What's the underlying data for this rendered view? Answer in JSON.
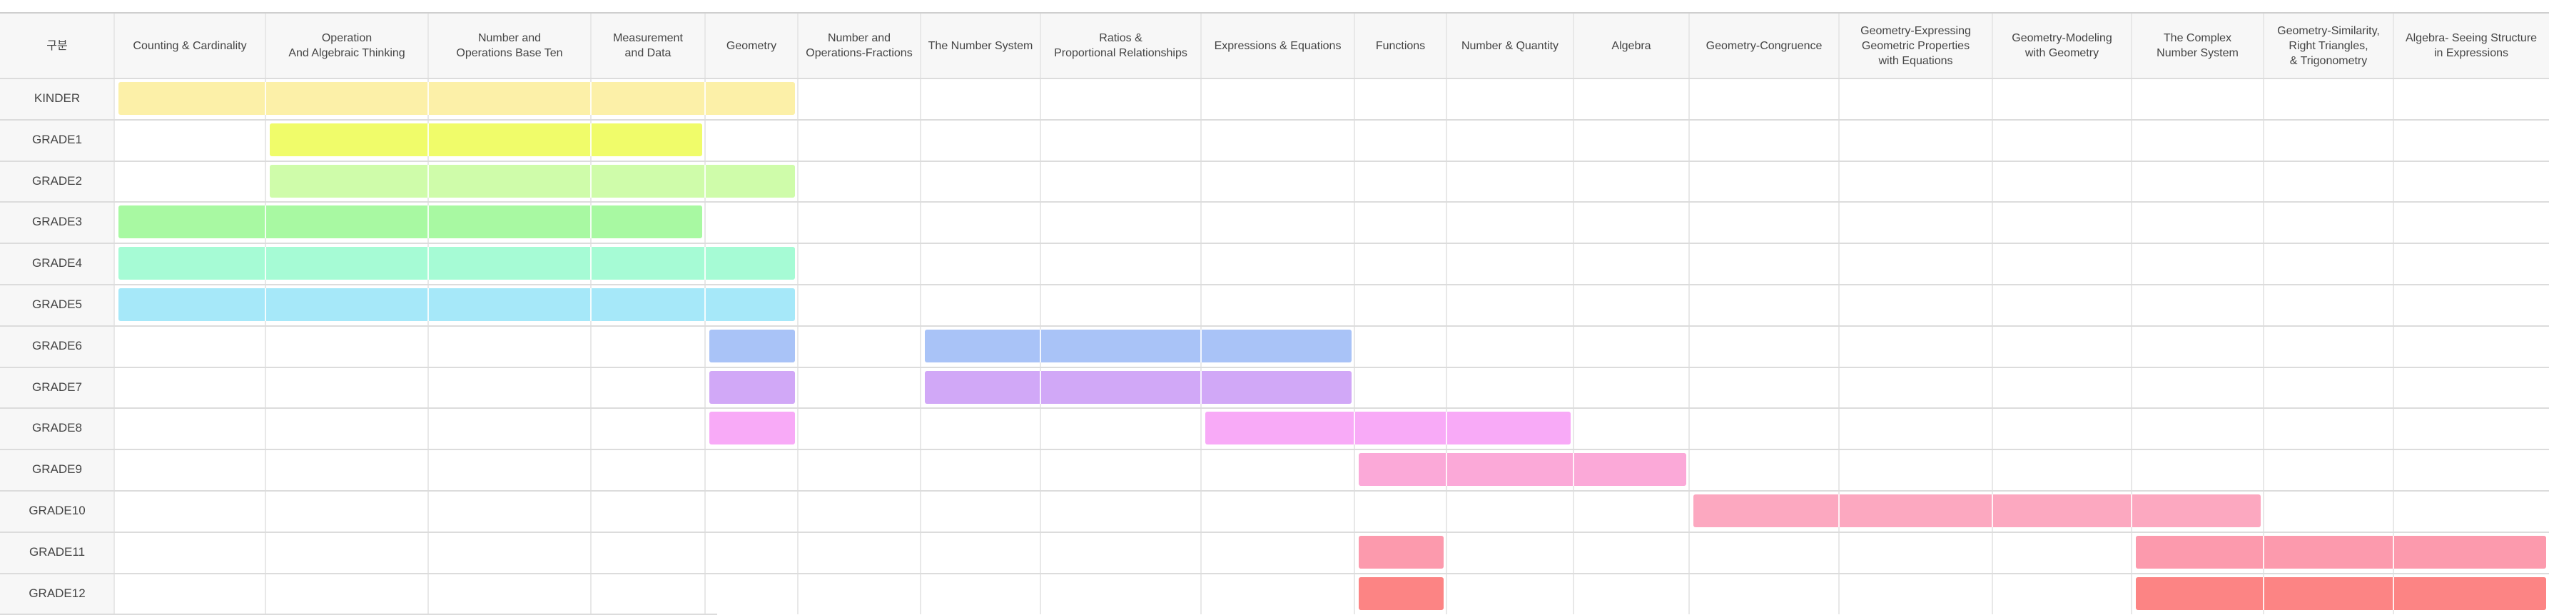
{
  "table": {
    "header": [
      "구분",
      "Counting & Cardinality",
      "Operation\nAnd Algebraic Thinking",
      "Number and\nOperations Base Ten",
      "Measurement\nand Data",
      "Geometry",
      "Number and\nOperations-Fractions",
      "The Number System",
      "Ratios &\nProportional Relationships",
      "Expressions & Equations",
      "Functions",
      "Number & Quantity",
      "Algebra",
      "Geometry-Congruence",
      "Geometry-Expressing\nGeometric Properties\nwith Equations",
      "Geometry-Modeling\nwith Geometry",
      "The Complex\nNumber System",
      "Geometry-Similarity,\nRight Triangles,\n& Trigonometry",
      "Algebra- Seeing Structure\nin Expressions"
    ],
    "rows": [
      {
        "label": "KINDER",
        "color": "#fcf0a8",
        "spans": [
          [
            1,
            5
          ]
        ]
      },
      {
        "label": "GRADE1",
        "color": "#f0fc6a",
        "spans": [
          [
            2,
            4
          ]
        ]
      },
      {
        "label": "GRADE2",
        "color": "#cffcaa",
        "spans": [
          [
            2,
            5
          ]
        ]
      },
      {
        "label": "GRADE3",
        "color": "#a8f9a2",
        "spans": [
          [
            1,
            4
          ]
        ]
      },
      {
        "label": "GRADE4",
        "color": "#a6fbd5",
        "spans": [
          [
            1,
            5
          ]
        ]
      },
      {
        "label": "GRADE5",
        "color": "#a6e8f9",
        "spans": [
          [
            1,
            5
          ]
        ]
      },
      {
        "label": "GRADE6",
        "color": "#a9c3f7",
        "spans": [
          [
            5,
            5
          ],
          [
            7,
            9
          ]
        ]
      },
      {
        "label": "GRADE7",
        "color": "#d1a8f7",
        "spans": [
          [
            5,
            5
          ],
          [
            7,
            9
          ]
        ]
      },
      {
        "label": "GRADE8",
        "color": "#f8aaf7",
        "spans": [
          [
            5,
            5
          ],
          [
            9,
            11
          ]
        ]
      },
      {
        "label": "GRADE9",
        "color": "#fba9d8",
        "spans": [
          [
            10,
            12
          ]
        ]
      },
      {
        "label": "GRADE10",
        "color": "#fca8c0",
        "spans": [
          [
            13,
            16
          ]
        ]
      },
      {
        "label": "GRADE11",
        "color": "#fc9aad",
        "spans": [
          [
            10,
            10
          ],
          [
            16,
            18
          ]
        ]
      },
      {
        "label": "GRADE12",
        "color": "#fc8484",
        "spans": [
          [
            10,
            10
          ],
          [
            16,
            18
          ]
        ]
      }
    ]
  }
}
